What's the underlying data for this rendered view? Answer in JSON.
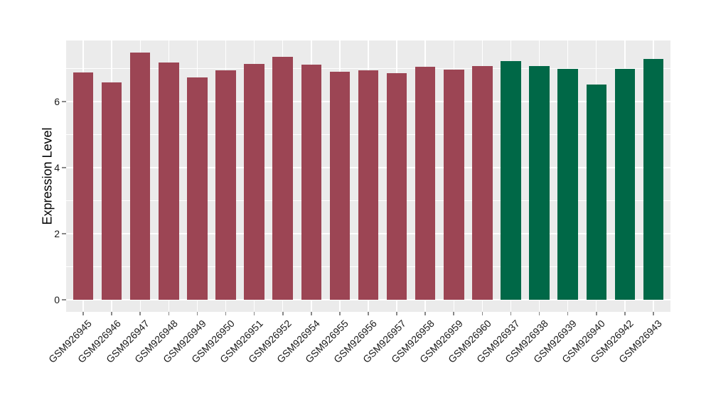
{
  "figure": {
    "background": "#FFFFFF",
    "panel_background": "#EBEBEB",
    "grid_color": "#FFFFFF",
    "tick_mark_color": "#888888",
    "axis_text_color": "#1A1A1A"
  },
  "chart_data": {
    "type": "bar",
    "title": "",
    "xlabel": "",
    "ylabel": "Expression Level",
    "categories": [
      "GSM926945",
      "GSM926946",
      "GSM926947",
      "GSM926948",
      "GSM926949",
      "GSM926950",
      "GSM926951",
      "GSM926952",
      "GSM926954",
      "GSM926955",
      "GSM926956",
      "GSM926957",
      "GSM926958",
      "GSM926959",
      "GSM926960",
      "GSM926937",
      "GSM926938",
      "GSM926939",
      "GSM926940",
      "GSM926942",
      "GSM926943"
    ],
    "values": [
      6.89,
      6.58,
      7.48,
      7.18,
      6.73,
      6.95,
      7.15,
      7.35,
      7.12,
      6.9,
      6.95,
      6.86,
      7.05,
      6.96,
      7.08,
      7.23,
      7.08,
      6.99,
      6.52,
      7.0,
      7.3
    ],
    "bar_groups": [
      "group1",
      "group1",
      "group1",
      "group1",
      "group1",
      "group1",
      "group1",
      "group1",
      "group1",
      "group1",
      "group1",
      "group1",
      "group1",
      "group1",
      "group1",
      "group2",
      "group2",
      "group2",
      "group2",
      "group2",
      "group2"
    ],
    "group_colors": {
      "group1": "#9C4554",
      "group2": "#006847"
    },
    "ylim": [
      -0.37,
      7.85
    ],
    "yticks": [
      0,
      2,
      4,
      6
    ],
    "yminor_gridlines": [
      1,
      3,
      5,
      7
    ],
    "grid": "on",
    "legend_position": "none"
  }
}
